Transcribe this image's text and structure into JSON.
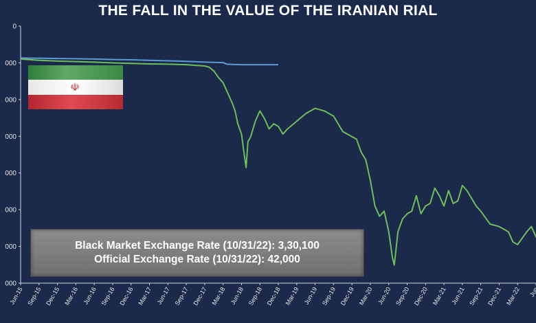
{
  "chart_data": {
    "type": "line",
    "title": "THE FALL IN THE VALUE OF THE IRANIAN RIAL",
    "x_tick_labels": [
      "Jun-15",
      "Sep-15",
      "Dec-15",
      "Mar-16",
      "Jun-16",
      "Sep-16",
      "Dec-16",
      "Mar-17",
      "Jun-17",
      "Sep-17",
      "Dec-17",
      "Mar-18",
      "Jun-18",
      "Sep-18",
      "Dec-18",
      "Mar-19",
      "Jun-19",
      "Sep-19",
      "Dec-19",
      "Mar-20",
      "Jun-20",
      "Sep-20",
      "Dec-20",
      "Mar-21",
      "Jun-21",
      "Sep-21",
      "Dec-21",
      "Mar-22",
      "Jun"
    ],
    "y_tick_labels": [
      "0",
      "000",
      "000",
      "000",
      "000",
      "000",
      "000",
      "000"
    ],
    "grid": false,
    "legend": "none",
    "series": [
      {
        "color": "#5b9bd5",
        "points": [
          [
            0,
            0.124
          ],
          [
            4,
            0.126
          ],
          [
            8,
            0.128
          ],
          [
            10,
            0.13
          ],
          [
            12,
            0.131
          ],
          [
            14,
            0.133
          ],
          [
            16,
            0.135
          ],
          [
            18,
            0.137
          ],
          [
            20,
            0.14
          ],
          [
            22,
            0.142
          ],
          [
            22.4,
            0.148
          ],
          [
            23,
            0.149
          ],
          [
            24,
            0.15
          ],
          [
            28,
            0.15
          ]
        ]
      },
      {
        "color": "#6dbf5a",
        "points": [
          [
            0,
            0.128
          ],
          [
            2,
            0.133
          ],
          [
            4,
            0.136
          ],
          [
            6,
            0.138
          ],
          [
            8,
            0.14
          ],
          [
            10,
            0.143
          ],
          [
            12,
            0.145
          ],
          [
            14,
            0.147
          ],
          [
            16,
            0.148
          ],
          [
            18,
            0.15
          ],
          [
            20,
            0.155
          ],
          [
            20.5,
            0.16
          ],
          [
            21,
            0.175
          ],
          [
            21.5,
            0.2
          ],
          [
            22,
            0.22
          ],
          [
            22.5,
            0.26
          ],
          [
            23,
            0.3
          ],
          [
            23.3,
            0.33
          ],
          [
            23.6,
            0.38
          ],
          [
            24,
            0.42
          ],
          [
            24.3,
            0.5
          ],
          [
            24.5,
            0.55
          ],
          [
            24.7,
            0.45
          ],
          [
            25,
            0.43
          ],
          [
            25.5,
            0.37
          ],
          [
            26,
            0.33
          ],
          [
            26.5,
            0.36
          ],
          [
            27,
            0.4
          ],
          [
            27.5,
            0.38
          ],
          [
            28,
            0.39
          ],
          [
            28.5,
            0.42
          ],
          [
            29,
            0.4
          ],
          [
            30,
            0.37
          ],
          [
            31,
            0.34
          ],
          [
            32,
            0.32
          ],
          [
            33,
            0.33
          ],
          [
            34,
            0.35
          ],
          [
            34.5,
            0.38
          ],
          [
            35,
            0.41
          ],
          [
            36,
            0.43
          ],
          [
            36.5,
            0.44
          ],
          [
            37,
            0.49
          ],
          [
            37.5,
            0.52
          ],
          [
            38,
            0.6
          ],
          [
            38.5,
            0.7
          ],
          [
            39,
            0.74
          ],
          [
            39.5,
            0.72
          ],
          [
            40,
            0.8
          ],
          [
            40.4,
            0.9
          ],
          [
            40.6,
            0.93
          ],
          [
            41,
            0.8
          ],
          [
            41.5,
            0.75
          ],
          [
            42,
            0.73
          ],
          [
            42.5,
            0.72
          ],
          [
            43,
            0.66
          ],
          [
            43.5,
            0.73
          ],
          [
            44,
            0.7
          ],
          [
            44.5,
            0.69
          ],
          [
            45,
            0.63
          ],
          [
            45.5,
            0.66
          ],
          [
            46,
            0.7
          ],
          [
            46.5,
            0.64
          ],
          [
            47,
            0.69
          ],
          [
            47.5,
            0.68
          ],
          [
            48,
            0.62
          ],
          [
            48.5,
            0.64
          ],
          [
            49,
            0.67
          ],
          [
            49.5,
            0.7
          ],
          [
            50,
            0.72
          ],
          [
            51,
            0.77
          ],
          [
            52,
            0.78
          ],
          [
            53,
            0.8
          ],
          [
            53.5,
            0.84
          ],
          [
            54,
            0.85
          ],
          [
            55,
            0.8
          ],
          [
            55.5,
            0.78
          ],
          [
            56,
            0.82
          ],
          [
            56.5,
            0.8
          ],
          [
            57,
            0.76
          ],
          [
            57.5,
            0.74
          ],
          [
            58,
            0.76
          ],
          [
            58.5,
            0.82
          ],
          [
            59,
            0.8
          ]
        ]
      }
    ]
  },
  "info_box": {
    "line1": "Black Market Exchange Rate (10/31/22): 3,30,100",
    "line2": "Official Exchange Rate (10/31/22): 42,000"
  },
  "flag": {
    "icon": "iran-flag-icon",
    "emblem": "☫"
  }
}
